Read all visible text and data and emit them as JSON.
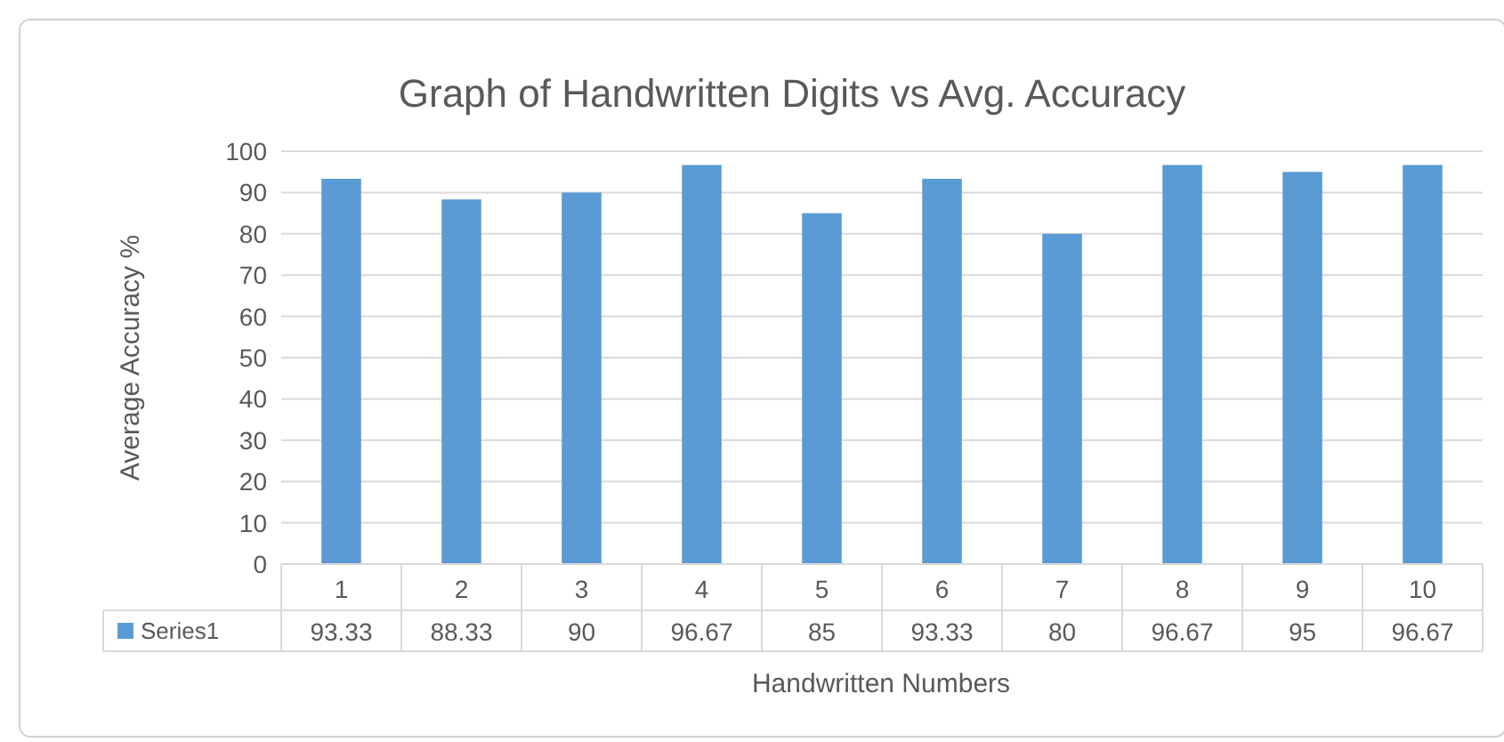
{
  "chart_data": {
    "type": "bar",
    "title": "Graph of Handwritten Digits vs Avg. Accuracy",
    "xlabel": "Handwritten Numbers",
    "ylabel": "Average Accuracy %",
    "categories": [
      "1",
      "2",
      "3",
      "4",
      "5",
      "6",
      "7",
      "8",
      "9",
      "10"
    ],
    "series": [
      {
        "name": "Series1",
        "color": "#5b9bd5",
        "values": [
          93.33,
          88.33,
          90,
          96.67,
          85,
          93.33,
          80,
          96.67,
          95,
          96.67
        ]
      }
    ],
    "ylim": [
      0,
      100
    ],
    "yticks": [
      0,
      10,
      20,
      30,
      40,
      50,
      60,
      70,
      80,
      90,
      100
    ],
    "grid": "y",
    "data_labels": true,
    "legend": "bottom"
  }
}
